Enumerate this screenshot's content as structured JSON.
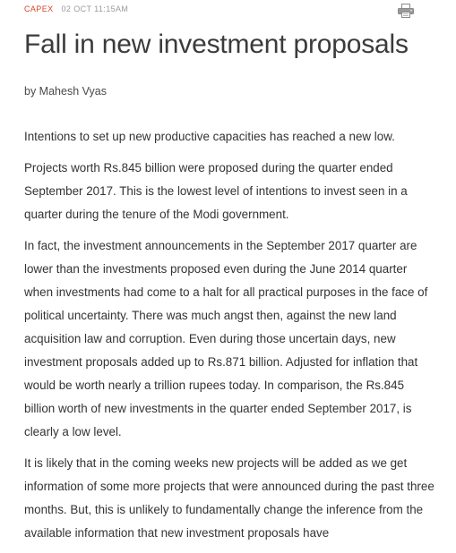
{
  "meta": {
    "category": "CAPEX",
    "timestamp": "02 OCT 11:15AM"
  },
  "icons": {
    "print": "printer-icon"
  },
  "article": {
    "title": "Fall in new investment proposals",
    "byline": "by Mahesh Vyas",
    "paragraphs": [
      "Intentions to set up new productive capacities has reached a new low.",
      "Projects worth Rs.845 billion were proposed during the quarter ended September 2017. This is the lowest level of intentions to invest seen in a quarter during the tenure of the Modi government.",
      "In fact, the investment announcements in the September 2017 quarter are lower than the investments proposed even during the June 2014 quarter when investments had come to a halt for all practical purposes in the face of political uncertainty. There was much angst then, against the new land acquisition law and corruption. Even during those uncertain days, new investment proposals added up to Rs.871 billion. Adjusted for inflation that would be worth nearly a trillion rupees today. In comparison, the Rs.845 billion worth of new investments in the quarter ended September 2017, is clearly a low level.",
      "It is likely that in the coming weeks new projects will be added as we get information of some more projects that were announced during the past three months. But, this is unlikely to fundamentally change the inference from the available information that new investment proposals have"
    ]
  },
  "colors": {
    "category": "#d9432b",
    "timestamp": "#9a9a9a",
    "text": "#333333"
  }
}
